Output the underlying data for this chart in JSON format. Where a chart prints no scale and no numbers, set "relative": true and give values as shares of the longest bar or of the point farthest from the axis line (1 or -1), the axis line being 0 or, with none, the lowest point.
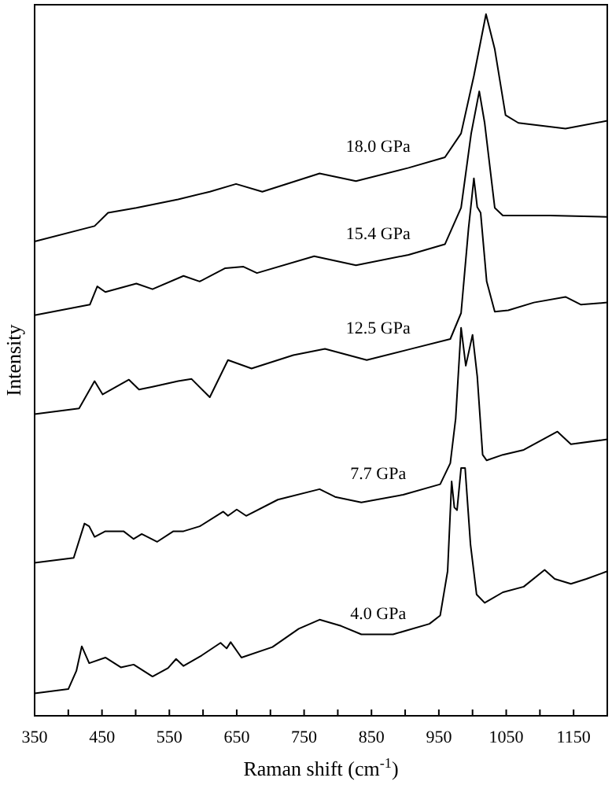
{
  "chart_data": {
    "type": "line",
    "relative": true,
    "xlabel": "Raman shift (cm$^{-1}$)",
    "ylabel": "Intensity",
    "xlim": [
      350,
      1200
    ],
    "xticks": [
      350,
      {
        "value": 400,
        "label": null
      },
      450,
      {
        "value": 500,
        "label": null
      },
      550,
      {
        "value": 600,
        "label": null
      },
      650,
      {
        "value": 700,
        "label": null
      },
      750,
      {
        "value": 800,
        "label": null
      },
      850,
      {
        "value": 900,
        "label": null
      },
      950,
      {
        "value": 1000,
        "label": null
      },
      1050,
      {
        "value": 1100,
        "label": null
      },
      1150,
      {
        "value": 1200,
        "label": null
      }
    ],
    "tick_labels": "x",
    "line_style": "solid",
    "series": [
      {
        "name": "4.0 GPa",
        "color": "#000000",
        "x": [
          350,
          400,
          412,
          420,
          431,
          455,
          478,
          497,
          525,
          548,
          560,
          571,
          598,
          626,
          635,
          641,
          657,
          703,
          742,
          773,
          805,
          835,
          882,
          936,
          952,
          963,
          969,
          973,
          977,
          983,
          989,
          997,
          1006,
          1018,
          1045,
          1076,
          1107,
          1122,
          1146,
          1169,
          1200
        ],
        "values": [
          0.032,
          0.038,
          0.064,
          0.099,
          0.075,
          0.083,
          0.069,
          0.073,
          0.056,
          0.068,
          0.081,
          0.071,
          0.086,
          0.104,
          0.096,
          0.105,
          0.083,
          0.098,
          0.124,
          0.137,
          0.128,
          0.116,
          0.116,
          0.131,
          0.143,
          0.206,
          0.334,
          0.297,
          0.293,
          0.353,
          0.353,
          0.244,
          0.173,
          0.161,
          0.176,
          0.184,
          0.208,
          0.195,
          0.188,
          0.195,
          0.206
        ]
      },
      {
        "name": "7.7 GPa",
        "color": "#000000",
        "x": [
          350,
          408,
          424,
          431,
          439,
          455,
          482,
          497,
          509,
          532,
          556,
          571,
          595,
          630,
          637,
          650,
          664,
          711,
          773,
          796,
          835,
          897,
          952,
          967,
          975,
          983,
          990,
          1000,
          1007,
          1015,
          1021,
          1045,
          1076,
          1126,
          1146,
          1200
        ],
        "values": [
          0.218,
          0.225,
          0.274,
          0.27,
          0.255,
          0.263,
          0.263,
          0.252,
          0.259,
          0.248,
          0.263,
          0.263,
          0.27,
          0.291,
          0.285,
          0.294,
          0.285,
          0.308,
          0.323,
          0.312,
          0.304,
          0.315,
          0.33,
          0.36,
          0.424,
          0.553,
          0.499,
          0.543,
          0.484,
          0.372,
          0.364,
          0.372,
          0.379,
          0.405,
          0.387,
          0.394
        ]
      },
      {
        "name": "12.5 GPa",
        "color": "#000000",
        "x": [
          350,
          416,
          439,
          451,
          490,
          505,
          525,
          563,
          583,
          610,
          637,
          672,
          734,
          781,
          843,
          905,
          967,
          983,
          994,
          1002,
          1007,
          1012,
          1021,
          1033,
          1053,
          1091,
          1138,
          1161,
          1200
        ],
        "values": [
          0.43,
          0.438,
          0.477,
          0.458,
          0.479,
          0.465,
          0.469,
          0.477,
          0.48,
          0.454,
          0.507,
          0.495,
          0.514,
          0.523,
          0.507,
          0.522,
          0.537,
          0.574,
          0.694,
          0.766,
          0.725,
          0.717,
          0.619,
          0.576,
          0.578,
          0.589,
          0.597,
          0.586,
          0.589
        ]
      },
      {
        "name": "15.4 GPa",
        "color": "#000000",
        "x": [
          350,
          432,
          443,
          455,
          501,
          525,
          571,
          595,
          633,
          660,
          680,
          765,
          827,
          905,
          959,
          983,
          998,
          1010,
          1018,
          1033,
          1045,
          1115,
          1200
        ],
        "values": [
          0.571,
          0.586,
          0.612,
          0.604,
          0.616,
          0.608,
          0.627,
          0.619,
          0.638,
          0.64,
          0.631,
          0.655,
          0.642,
          0.657,
          0.672,
          0.724,
          0.83,
          0.89,
          0.845,
          0.724,
          0.713,
          0.713,
          0.711
        ]
      },
      {
        "name": "18.0 GPa",
        "color": "#000000",
        "x": [
          350,
          439,
          459,
          501,
          563,
          610,
          649,
          688,
          773,
          827,
          905,
          959,
          983,
          1002,
          1020,
          1033,
          1049,
          1068,
          1138,
          1200
        ],
        "values": [
          0.676,
          0.698,
          0.717,
          0.724,
          0.736,
          0.747,
          0.758,
          0.747,
          0.773,
          0.762,
          0.781,
          0.796,
          0.83,
          0.912,
          1,
          0.95,
          0.856,
          0.845,
          0.837,
          0.848
        ]
      }
    ]
  }
}
